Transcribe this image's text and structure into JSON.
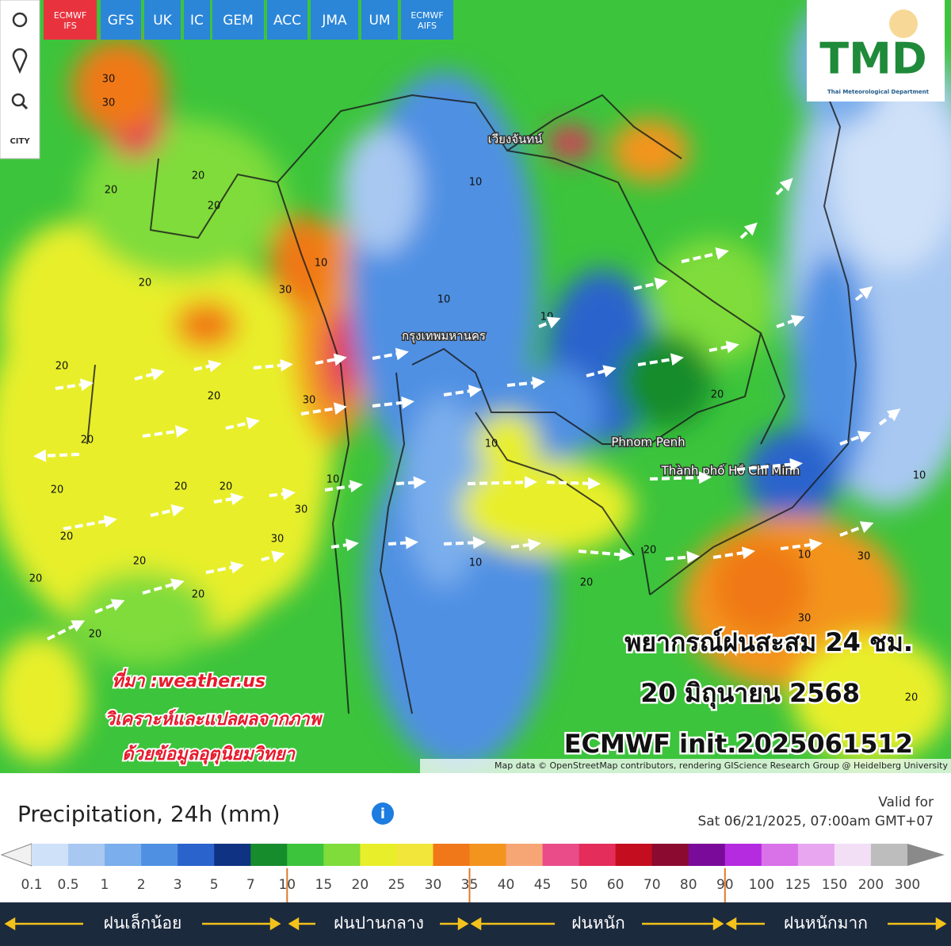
{
  "toolbar": {
    "models": [
      "ECMWF IFS",
      "GFS",
      "UK",
      "IC",
      "GEM",
      "ACC",
      "JMA",
      "UM",
      "ECMWF AIFS"
    ],
    "city_button": "CITY"
  },
  "logo": {
    "title": "TMD",
    "subtitle": "Thai Meteorological Department"
  },
  "map": {
    "places": [
      "เวียงจันทน์",
      "กรุงเทพมหานคร",
      "Phnom Penh",
      "Thành phố Hồ Chí Minh"
    ],
    "contour_labels": [
      30,
      30,
      20,
      20,
      20,
      30,
      20,
      10,
      20,
      20,
      30,
      20,
      20,
      20,
      30,
      20,
      20,
      20,
      10,
      10,
      10,
      10,
      10,
      20,
      10,
      20,
      20,
      30,
      30,
      20,
      10,
      10,
      20,
      30,
      20,
      20
    ],
    "headline": "พยากรณ์ฝนสะสม 24 ชม.",
    "date": "20 มิถุนายน 2568",
    "init": "ECMWF init.2025061512",
    "source": "ที่มา :weather.us",
    "analysis": [
      "วิเคราะห์และแปลผลจากภาพ",
      "ด้วยข้อมูลอุตุนิยมวิทยา"
    ],
    "attribution": "Map data © OpenStreetMap contributors, rendering GIScience Research Group @ Heidelberg University"
  },
  "legend": {
    "title": "Precipitation, 24h (mm)",
    "valid_label": "Valid for",
    "valid_time": "Sat 06/21/2025, 07:00am GMT+07",
    "ticks": [
      0.1,
      0.5,
      1,
      2,
      3,
      5,
      7,
      10,
      15,
      20,
      25,
      30,
      35,
      40,
      45,
      50,
      60,
      70,
      80,
      90,
      100,
      125,
      150,
      200,
      300
    ],
    "colors": [
      "#cfe1f8",
      "#a8c8f2",
      "#7aaeec",
      "#4f90e3",
      "#2a63cc",
      "#0f3282",
      "#168c2c",
      "#3cc43c",
      "#7fdc3a",
      "#e8ef2a",
      "#f2e63a",
      "#f07818",
      "#f3941e",
      "#f6a675",
      "#ea4c8a",
      "#e42d5a",
      "#c40d1e",
      "#8a0a30",
      "#7a0b9a",
      "#b52be0",
      "#d971e8",
      "#e8a6f0",
      "#f2dff6",
      "#bdbdbd"
    ],
    "bands": [
      "ฝนเล็กน้อย",
      "ฝนปานกลาง",
      "ฝนหนัก",
      "ฝนหนักมาก"
    ]
  }
}
